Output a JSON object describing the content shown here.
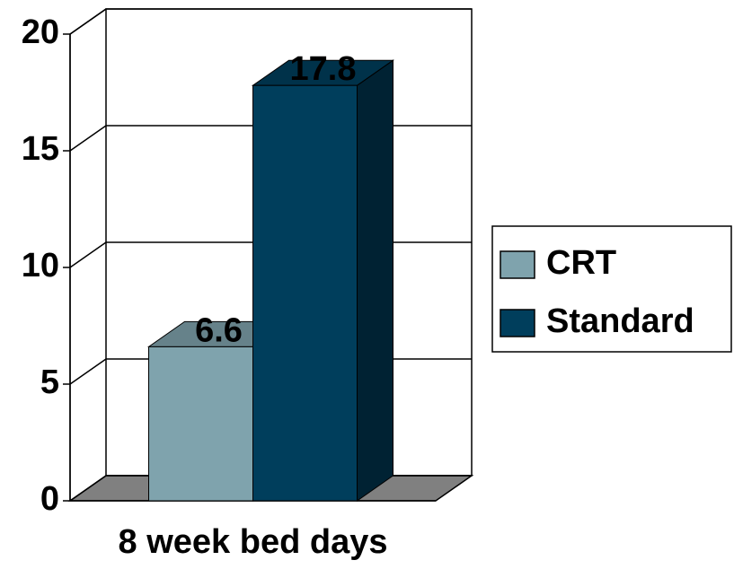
{
  "chart_data": {
    "type": "bar3d",
    "categories": [
      "8 week bed days"
    ],
    "series": [
      {
        "name": "CRT",
        "color": "#7fa3ad",
        "values": [
          6.6
        ]
      },
      {
        "name": "Standard",
        "color": "#003e5c",
        "values": [
          17.8
        ]
      }
    ],
    "ylim": [
      0,
      20
    ],
    "yticks": [
      0,
      5,
      10,
      15,
      20
    ],
    "grid": true,
    "legend": "right"
  }
}
